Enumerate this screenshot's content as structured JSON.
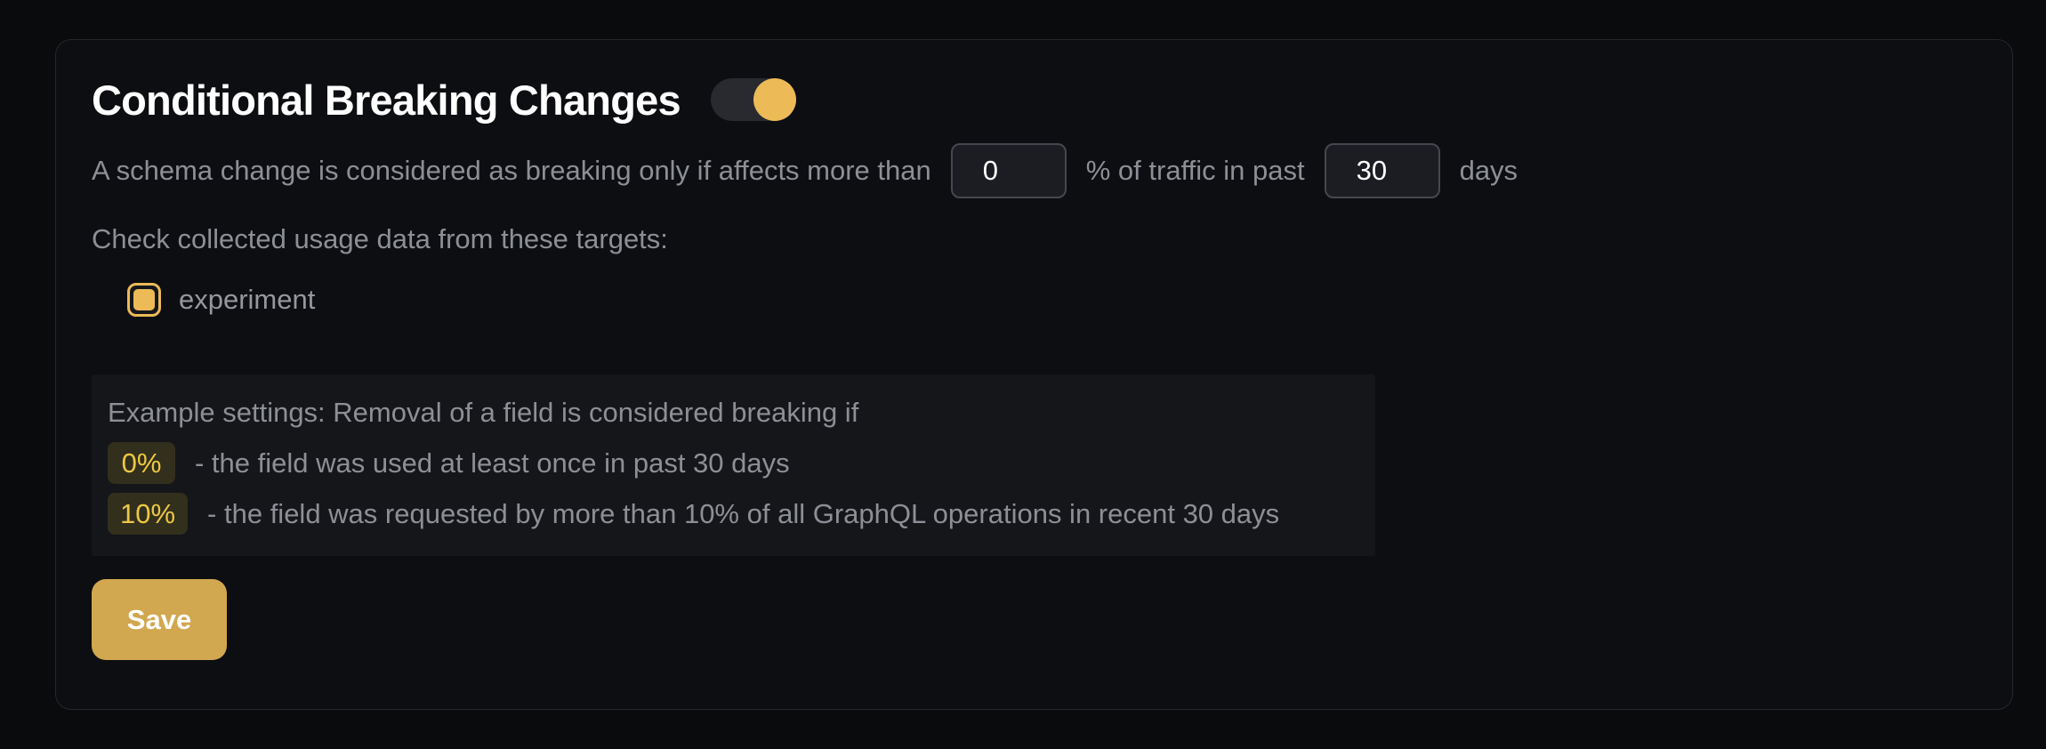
{
  "colors": {
    "accent_yellow": "#ecba57",
    "save_button": "#d1a74f",
    "chip_bg": "#322f1c",
    "chip_text": "#edc844",
    "page_bg": "#0a0b0d",
    "card_bg": "#0d0e11",
    "muted_text": "#8d8f96"
  },
  "card": {
    "title": "Conditional Breaking Changes",
    "toggle": {
      "state": "on"
    },
    "threshold_sentence": {
      "part1": "A schema change is considered as breaking only if affects more than",
      "percentage_value": "0",
      "part2": "% of traffic in past",
      "days_value": "30",
      "part3": "days"
    },
    "targets": {
      "label": "Check collected usage data from these targets:",
      "items": [
        {
          "name": "experiment",
          "checked": true
        }
      ]
    },
    "example": {
      "intro": "Example settings: Removal of a field is considered breaking if",
      "rules": [
        {
          "badge": "0%",
          "text": "- the field was used at least once in past 30 days"
        },
        {
          "badge": "10%",
          "text": "- the field was requested by more than 10% of all GraphQL operations in recent 30 days"
        }
      ]
    },
    "save_label": "Save"
  }
}
